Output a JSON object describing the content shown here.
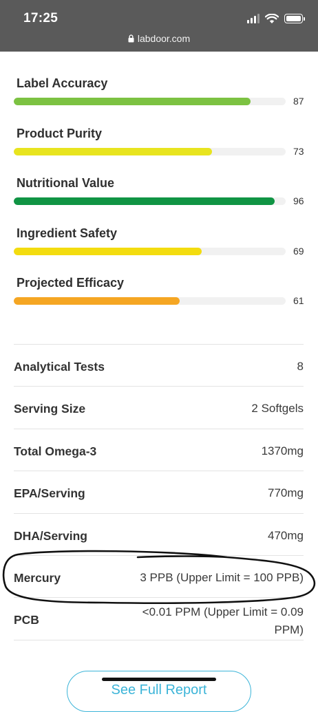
{
  "status_bar": {
    "time": "17:25"
  },
  "browser": {
    "url": "labdoor.com"
  },
  "scores": [
    {
      "label": "Label Accuracy",
      "value": "87",
      "percent": 87,
      "color": "#7cc242"
    },
    {
      "label": "Product Purity",
      "value": "73",
      "percent": 73,
      "color": "#e8e41f"
    },
    {
      "label": "Nutritional Value",
      "value": "96",
      "percent": 96,
      "color": "#109444"
    },
    {
      "label": "Ingredient Safety",
      "value": "69",
      "percent": 69,
      "color": "#f3dc0f"
    },
    {
      "label": "Projected Efficacy",
      "value": "61",
      "percent": 61,
      "color": "#f5a623"
    }
  ],
  "details": [
    {
      "label": "Analytical Tests",
      "value": "8"
    },
    {
      "label": "Serving Size",
      "value": "2 Softgels"
    },
    {
      "label": "Total Omega-3",
      "value": "1370mg"
    },
    {
      "label": "EPA/Serving",
      "value": "770mg"
    },
    {
      "label": "DHA/Serving",
      "value": "470mg"
    },
    {
      "label": "Mercury",
      "value": "3 PPB (Upper Limit = 100 PPB)"
    },
    {
      "label": "PCB",
      "value": "<0.01 PPM (Upper Limit = 0.09 PPM)"
    }
  ],
  "cta": {
    "label": "See Full Report"
  },
  "colors": {
    "accent": "#3bb4d8",
    "track": "#f1f1f1"
  }
}
